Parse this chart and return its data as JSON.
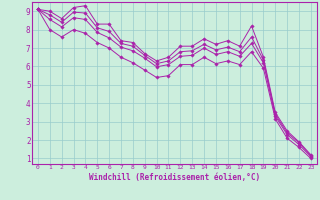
{
  "background_color": "#cceedd",
  "line_color": "#aa22aa",
  "grid_color": "#99cccc",
  "xlabel": "Windchill (Refroidissement éolien,°C)",
  "xlabel_color": "#aa22aa",
  "xlim": [
    -0.5,
    23.5
  ],
  "ylim": [
    0.7,
    9.5
  ],
  "yticks": [
    1,
    2,
    3,
    4,
    5,
    6,
    7,
    8,
    9
  ],
  "xticks": [
    0,
    1,
    2,
    3,
    4,
    5,
    6,
    7,
    8,
    9,
    10,
    11,
    12,
    13,
    14,
    15,
    16,
    17,
    18,
    19,
    20,
    21,
    22,
    23
  ],
  "series": [
    [
      9.1,
      9.0,
      8.6,
      9.2,
      9.3,
      8.3,
      8.3,
      7.4,
      7.3,
      6.7,
      6.3,
      6.5,
      7.1,
      7.1,
      7.5,
      7.2,
      7.4,
      7.1,
      8.2,
      6.5,
      3.5,
      2.5,
      1.9,
      1.2
    ],
    [
      9.1,
      8.8,
      8.4,
      8.95,
      8.9,
      8.1,
      7.9,
      7.25,
      7.1,
      6.6,
      6.15,
      6.3,
      6.8,
      6.85,
      7.2,
      6.9,
      7.05,
      6.8,
      7.6,
      6.35,
      3.4,
      2.4,
      1.85,
      1.15
    ],
    [
      9.1,
      8.55,
      8.15,
      8.65,
      8.55,
      7.85,
      7.55,
      7.05,
      6.85,
      6.45,
      5.98,
      6.1,
      6.55,
      6.6,
      7.0,
      6.65,
      6.8,
      6.55,
      7.25,
      6.2,
      3.3,
      2.3,
      1.75,
      1.1
    ],
    [
      9.1,
      8.0,
      7.6,
      8.0,
      7.8,
      7.3,
      7.0,
      6.5,
      6.2,
      5.8,
      5.4,
      5.5,
      6.1,
      6.1,
      6.5,
      6.15,
      6.3,
      6.1,
      6.8,
      5.9,
      3.15,
      2.1,
      1.6,
      1.0
    ]
  ]
}
